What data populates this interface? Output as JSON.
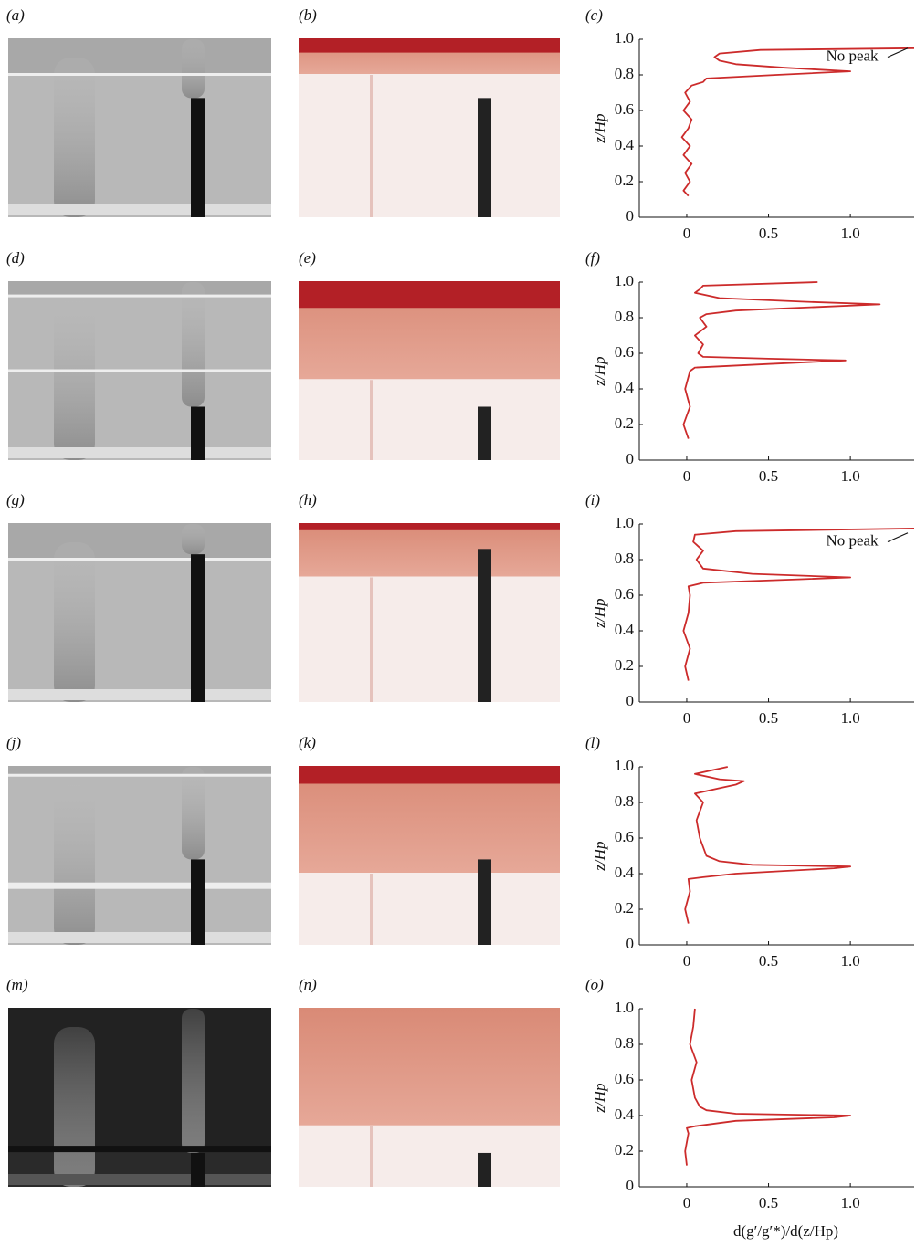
{
  "image_labels": [
    "(a)",
    "(b)",
    "(d)",
    "(e)",
    "(g)",
    "(h)",
    "(j)",
    "(k)",
    "(m)",
    "(n)"
  ],
  "chart_data": [
    {
      "type": "line",
      "panel_label": "(c)",
      "ylabel": "z/Hp",
      "annotation": "No peak",
      "color": "#cc2b2b",
      "x": [
        0.01,
        -0.02,
        0.02,
        -0.01,
        0.03,
        -0.02,
        0.02,
        -0.03,
        0.01,
        0.03,
        -0.02,
        0.02,
        -0.01,
        0.03,
        0.1,
        0.12,
        0.55,
        1.0,
        0.6,
        0.3,
        0.2,
        0.17,
        0.2,
        0.45,
        1.39
      ],
      "values": [
        0.12,
        0.15,
        0.2,
        0.25,
        0.3,
        0.35,
        0.4,
        0.45,
        0.5,
        0.55,
        0.6,
        0.65,
        0.7,
        0.74,
        0.76,
        0.78,
        0.8,
        0.82,
        0.84,
        0.86,
        0.88,
        0.9,
        0.92,
        0.94,
        0.95
      ],
      "xlim": [
        -0.29,
        1.39
      ],
      "ylim": [
        0,
        1
      ],
      "xticks": [
        0,
        0.5,
        {
          "value": 1,
          "label": "1.0"
        }
      ],
      "yticks": [
        0,
        0.2,
        0.4,
        0.6,
        0.8,
        {
          "value": 1,
          "label": "1.0"
        }
      ]
    },
    {
      "type": "line",
      "panel_label": "(f)",
      "ylabel": "z/Hp",
      "color": "#cc2b2b",
      "x": [
        0.01,
        -0.02,
        0.02,
        -0.01,
        0.02,
        0.05,
        0.5,
        0.97,
        0.5,
        0.1,
        0.07,
        0.1,
        0.05,
        0.12,
        0.08,
        0.12,
        0.3,
        0.8,
        1.18,
        0.7,
        0.2,
        0.05,
        0.08,
        0.1,
        0.8
      ],
      "values": [
        0.12,
        0.2,
        0.3,
        0.4,
        0.5,
        0.52,
        0.54,
        0.56,
        0.57,
        0.58,
        0.6,
        0.65,
        0.7,
        0.75,
        0.8,
        0.82,
        0.84,
        0.86,
        0.875,
        0.89,
        0.91,
        0.94,
        0.96,
        0.98,
        1.0
      ],
      "xlim": [
        -0.29,
        1.39
      ],
      "ylim": [
        0,
        1
      ],
      "xticks": [
        0,
        0.5,
        {
          "value": 1,
          "label": "1.0"
        }
      ],
      "yticks": [
        0,
        0.2,
        0.4,
        0.6,
        0.8,
        {
          "value": 1,
          "label": "1.0"
        }
      ]
    },
    {
      "type": "line",
      "panel_label": "(i)",
      "ylabel": "z/Hp",
      "annotation": "No peak",
      "color": "#cc2b2b",
      "x": [
        0.01,
        -0.01,
        0.02,
        -0.02,
        0.01,
        0.02,
        0.01,
        0.1,
        0.7,
        1.0,
        0.4,
        0.1,
        0.06,
        0.1,
        0.04,
        0.05,
        0.3,
        1.39
      ],
      "values": [
        0.12,
        0.2,
        0.3,
        0.4,
        0.5,
        0.6,
        0.65,
        0.67,
        0.69,
        0.7,
        0.72,
        0.75,
        0.8,
        0.85,
        0.9,
        0.94,
        0.96,
        0.975
      ],
      "xlim": [
        -0.29,
        1.39
      ],
      "ylim": [
        0,
        1
      ],
      "xticks": [
        0,
        0.5,
        {
          "value": 1,
          "label": "1.0"
        }
      ],
      "yticks": [
        0,
        0.2,
        0.4,
        0.6,
        0.8,
        {
          "value": 1,
          "label": "1.0"
        }
      ]
    },
    {
      "type": "line",
      "panel_label": "(l)",
      "ylabel": "z/Hp",
      "color": "#cc2b2b",
      "x": [
        0.01,
        -0.01,
        0.02,
        0.01,
        0.1,
        0.3,
        0.9,
        1.0,
        0.4,
        0.2,
        0.12,
        0.08,
        0.06,
        0.1,
        0.05,
        0.2,
        0.3,
        0.35,
        0.2,
        0.05,
        0.25
      ],
      "values": [
        0.12,
        0.2,
        0.3,
        0.37,
        0.38,
        0.4,
        0.43,
        0.44,
        0.45,
        0.47,
        0.5,
        0.6,
        0.7,
        0.8,
        0.85,
        0.88,
        0.9,
        0.92,
        0.93,
        0.96,
        1.0
      ],
      "xlim": [
        -0.29,
        1.39
      ],
      "ylim": [
        0,
        1
      ],
      "xticks": [
        0,
        0.5,
        {
          "value": 1,
          "label": "1.0"
        }
      ],
      "yticks": [
        0,
        0.2,
        0.4,
        0.6,
        0.8,
        {
          "value": 1,
          "label": "1.0"
        }
      ]
    },
    {
      "type": "line",
      "panel_label": "(o)",
      "ylabel": "z/Hp",
      "xlabel": "d(g′/g′*)/d(z/Hp)",
      "color": "#cc2b2b",
      "x": [
        0.0,
        -0.01,
        0.01,
        0.0,
        0.05,
        0.3,
        0.9,
        1.0,
        0.3,
        0.12,
        0.08,
        0.05,
        0.03,
        0.06,
        0.02,
        0.04,
        0.05
      ],
      "values": [
        0.12,
        0.2,
        0.3,
        0.33,
        0.34,
        0.37,
        0.39,
        0.4,
        0.41,
        0.43,
        0.45,
        0.5,
        0.6,
        0.7,
        0.8,
        0.9,
        1.0
      ],
      "xlim": [
        -0.29,
        1.39
      ],
      "ylim": [
        0,
        1
      ],
      "xticks": [
        0,
        0.5,
        {
          "value": 1,
          "label": "1.0"
        }
      ],
      "yticks": [
        0,
        0.2,
        0.4,
        0.6,
        0.8,
        {
          "value": 1,
          "label": "1.0"
        }
      ]
    }
  ]
}
